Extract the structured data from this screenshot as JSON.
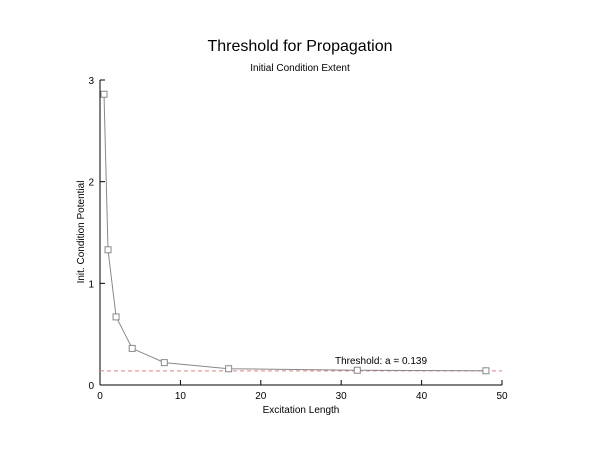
{
  "chart_data": {
    "type": "line",
    "title": "Threshold for Propagation",
    "subtitle": "Initial Condition Extent",
    "xlabel": "Excitation Length",
    "ylabel": "Init. Condition Potential",
    "xlim": [
      0,
      50
    ],
    "ylim": [
      0,
      3
    ],
    "x_ticks": [
      0,
      10,
      20,
      30,
      40,
      50
    ],
    "y_ticks": [
      0,
      1,
      2,
      3
    ],
    "grid": false,
    "series": [
      {
        "x": [
          0.5,
          1,
          2,
          4,
          8,
          16,
          32,
          48
        ],
        "values": [
          2.86,
          1.33,
          0.67,
          0.36,
          0.22,
          0.16,
          0.145,
          0.14
        ],
        "marker": "square",
        "color": "#888888"
      }
    ],
    "threshold": {
      "value": 0.139,
      "label": "Threshold: a = 0.139",
      "color": "#e08080",
      "style": "dashed"
    }
  }
}
